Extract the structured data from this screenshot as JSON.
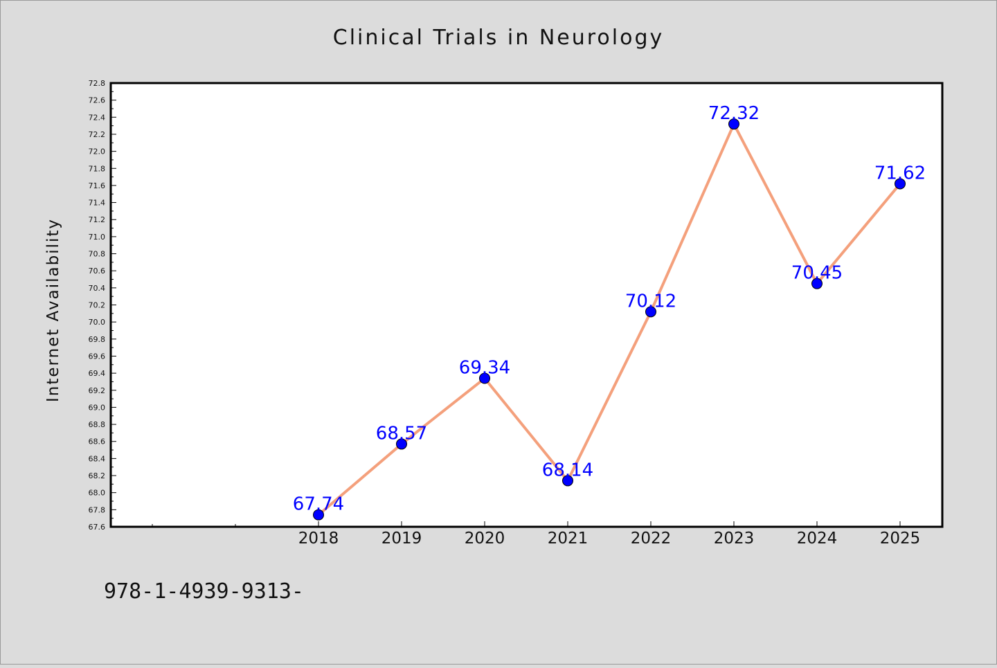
{
  "chart_data": {
    "type": "line",
    "title": "Clinical Trials in Neurology",
    "xlabel": "",
    "ylabel": "Internet Availability",
    "x": [
      "2018",
      "2019",
      "2020",
      "2021",
      "2022",
      "2023",
      "2024",
      "2025"
    ],
    "series": [
      {
        "values": [
          67.74,
          68.57,
          69.34,
          68.14,
          70.12,
          72.32,
          70.45,
          71.62
        ],
        "labels": [
          "67.74",
          "68.57",
          "69.34",
          "68.14",
          "70.12",
          "72.32",
          "70.45",
          "71.62"
        ],
        "line_color": "#f4a07c",
        "marker_color": "#0000ff"
      }
    ],
    "ylim": [
      67.6,
      72.8
    ],
    "yticks": [
      "67.6",
      "67.8",
      "68.0",
      "68.2",
      "68.4",
      "68.6",
      "68.8",
      "69.0",
      "69.2",
      "69.4",
      "69.6",
      "69.8",
      "70.0",
      "70.2",
      "70.4",
      "70.6",
      "70.8",
      "71.0",
      "71.2",
      "71.4",
      "71.6",
      "71.8",
      "72.0",
      "72.2",
      "72.4",
      "72.6",
      "72.8"
    ],
    "grid": false,
    "legend": "none"
  },
  "footnote": "978-1-4939-9313-",
  "colors": {
    "background": "#dcdcdc",
    "plot_background": "#ffffff",
    "line": "#f4a07c",
    "marker": "#0000ff",
    "data_label": "#0000ff"
  }
}
